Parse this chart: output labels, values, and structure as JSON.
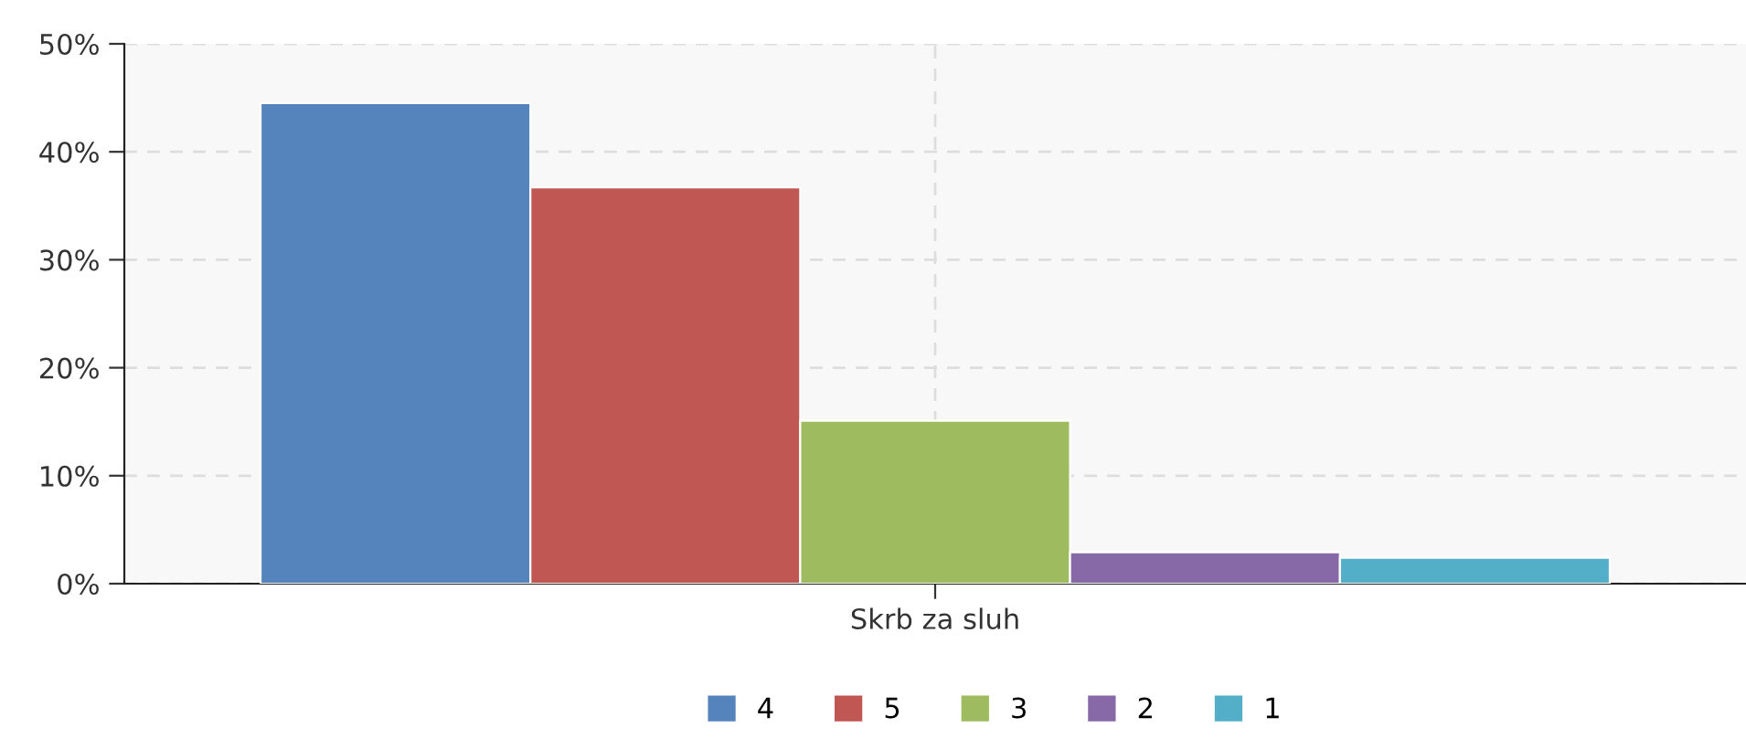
{
  "chart_data": {
    "type": "bar",
    "categories": [
      "Skrb za sluh"
    ],
    "series": [
      {
        "name": "4",
        "color": "#5584bd",
        "values": [
          44.5
        ]
      },
      {
        "name": "5",
        "color": "#c05753",
        "values": [
          36.7
        ]
      },
      {
        "name": "3",
        "color": "#9ebc5f",
        "values": [
          15.1
        ]
      },
      {
        "name": "2",
        "color": "#8669a6",
        "values": [
          2.9
        ]
      },
      {
        "name": "1",
        "color": "#53afc8",
        "values": [
          2.4
        ]
      }
    ],
    "ylim": [
      0,
      50
    ],
    "yticks": [
      {
        "value": 0,
        "label": "0%"
      },
      {
        "value": 10,
        "label": "10%"
      },
      {
        "value": 20,
        "label": "20%"
      },
      {
        "value": 30,
        "label": "30%"
      },
      {
        "value": 40,
        "label": "40%"
      },
      {
        "value": 50,
        "label": "50%"
      }
    ],
    "grid": true,
    "legend": "bottom"
  }
}
